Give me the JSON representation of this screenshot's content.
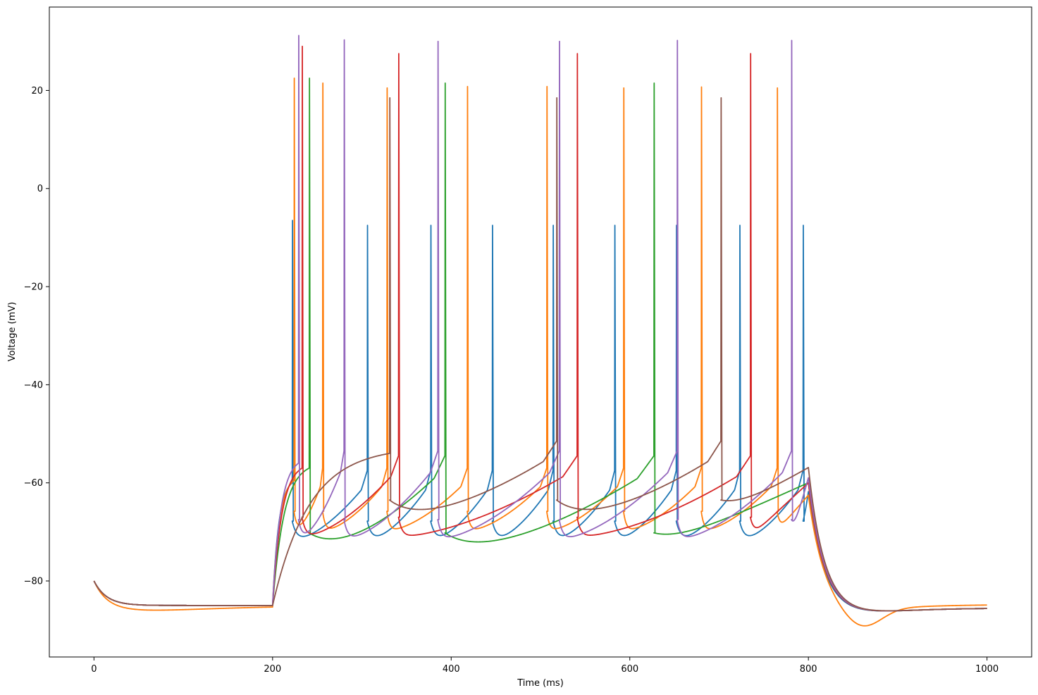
{
  "chart_data": {
    "type": "line",
    "title": "",
    "xlabel": "Time (ms)",
    "ylabel": "Voltage (mV)",
    "xlim": [
      -50,
      1050
    ],
    "ylim": [
      -95.5,
      37
    ],
    "xticks": [
      0,
      200,
      400,
      600,
      800,
      1000
    ],
    "yticks": [
      -80,
      -60,
      -40,
      -20,
      0,
      20
    ],
    "grid": false,
    "legend": "none",
    "stimulus": {
      "start": 200,
      "end": 800
    },
    "series": [
      {
        "color": "#1f77b4",
        "rest": -85.0,
        "initial": -80.0,
        "settle_tau": 14,
        "offset_amp": 0,
        "offset_tau": 1,
        "stim_threshold": -60.0,
        "spikes": [
          222,
          306,
          377,
          446,
          514,
          583,
          652,
          723,
          794
        ],
        "peaks": [
          -6.5,
          -7.5,
          -7.5,
          -7.5,
          -7.5,
          -7.5,
          -7.5,
          -7.5,
          -7.5
        ],
        "ahp": -71.8,
        "ahp_delay": 5,
        "tail_end": -85.5,
        "post_amp": 0,
        "post_center": 860,
        "post_width": 30
      },
      {
        "color": "#ff7f0e",
        "rest": -85.0,
        "initial": -80.0,
        "settle_tau": 14,
        "offset_amp": -1.0,
        "offset_tau": 60,
        "stim_threshold": -59.5,
        "spikes": [
          224,
          256,
          328,
          418,
          507,
          593,
          680,
          765
        ],
        "peaks": [
          22.5,
          21.5,
          20.5,
          20.8,
          20.8,
          20.5,
          20.7,
          20.5
        ],
        "ahp": -69.8,
        "ahp_delay": 3,
        "tail_end": -84.8,
        "post_amp": -4.0,
        "post_center": 860,
        "post_width": 30
      },
      {
        "color": "#2ca02c",
        "rest": -85.0,
        "initial": -80.0,
        "settle_tau": 14,
        "offset_amp": 0,
        "offset_tau": 1,
        "stim_threshold": -57.0,
        "spikes": [
          241,
          393,
          627
        ],
        "peaks": [
          22.5,
          21.5,
          21.5
        ],
        "ahp": -74.2,
        "ahp_delay": 32,
        "tail_end": -85.5,
        "post_amp": 0,
        "post_center": 860,
        "post_width": 30
      },
      {
        "color": "#d62728",
        "rest": -85.0,
        "initial": -80.0,
        "settle_tau": 14,
        "offset_amp": 0,
        "offset_tau": 1,
        "stim_threshold": -57.0,
        "spikes": [
          233,
          341,
          541,
          735
        ],
        "peaks": [
          29.0,
          27.5,
          27.5,
          27.5
        ],
        "ahp": -71.0,
        "ahp_delay": 4,
        "tail_end": -85.5,
        "post_amp": 0,
        "post_center": 860,
        "post_width": 30
      },
      {
        "color": "#9467bd",
        "rest": -85.0,
        "initial": -80.0,
        "settle_tau": 14,
        "offset_amp": 0,
        "offset_tau": 1,
        "stim_threshold": -56.0,
        "spikes": [
          229,
          280,
          385,
          521,
          653,
          781
        ],
        "peaks": [
          31.2,
          30.3,
          30.0,
          30.0,
          30.2,
          30.2
        ],
        "ahp": -71.5,
        "ahp_delay": 4,
        "tail_end": -85.5,
        "post_amp": 0,
        "post_center": 860,
        "post_width": 30
      },
      {
        "color": "#8c564b",
        "rest": -85.0,
        "initial": -80.0,
        "settle_tau": 14,
        "offset_amp": 0,
        "offset_tau": 1,
        "stim_threshold": -54.0,
        "spikes": [
          331,
          518,
          702
        ],
        "peaks": [
          18.5,
          18.5,
          18.5
        ],
        "ahp": -67.5,
        "ahp_delay": 28,
        "tail_end": -85.5,
        "post_amp": 0,
        "post_center": 860,
        "post_width": 30
      }
    ]
  }
}
